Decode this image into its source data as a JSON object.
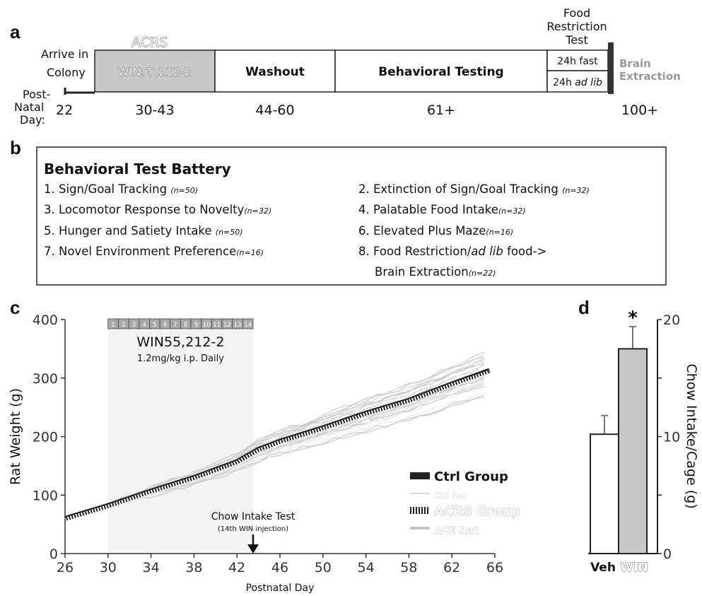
{
  "panels": {
    "a": "a",
    "b": "b",
    "c": "c",
    "d": "d"
  },
  "timeline": {
    "arrive_line1": "Arrive in",
    "arrive_line2": "Colony",
    "acrs_label": "ACRS",
    "win_label": "WIN55,212-2",
    "washout": "Washout",
    "behavioral": "Behavioral Testing",
    "food_test_line1": "Food",
    "food_test_line2": "Restriction",
    "food_test_line3": "Test",
    "fast": "24h fast",
    "adlib_prefix": "24h ",
    "adlib_italic": "ad lib",
    "brain_line1": "Brain",
    "brain_line2": "Extraction",
    "pnd_line1": "Post-",
    "pnd_line2": "Natal",
    "pnd_line3": "Day:",
    "days": [
      "22",
      "30-43",
      "44-60",
      "61+",
      "100+"
    ]
  },
  "battery": {
    "title": "Behavioral Test Battery",
    "items": [
      {
        "text": "1. Sign/Goal Tracking ",
        "n": "(n=50)"
      },
      {
        "text": "2. Extinction of Sign/Goal Tracking ",
        "n": "(n=32)"
      },
      {
        "text": "3. Locomotor Response to Novelty",
        "n": "(n=32)"
      },
      {
        "text": "4. Palatable Food Intake",
        "n": "(n=32)"
      },
      {
        "text": "5. Hunger and Satiety Intake ",
        "n": "(n=50)"
      },
      {
        "text": "6. Elevated Plus Maze",
        "n": "(n=16)"
      },
      {
        "text": "7. Novel Environment Preference",
        "n": "(n=16)"
      },
      {
        "text_pre": "8. Food Restriction/",
        "text_italic": "ad lib",
        "text_post": " food->",
        "line2": "Brain Extraction",
        "n": "(n=22)"
      }
    ]
  },
  "chart_data": [
    {
      "type": "line",
      "xlabel": "Postnatal Day",
      "ylabel": "Rat Weight (g)",
      "xlim": [
        26,
        66
      ],
      "ylim": [
        0,
        400
      ],
      "xticks": [
        26,
        30,
        34,
        38,
        42,
        46,
        50,
        54,
        58,
        62,
        66
      ],
      "yticks": [
        0,
        100,
        200,
        300,
        400
      ],
      "shaded_region": [
        30,
        43.5
      ],
      "injection_days": [
        "1",
        "2",
        "3",
        "4",
        "5",
        "6",
        "7",
        "8",
        "9",
        "10",
        "11",
        "12",
        "13",
        "14"
      ],
      "annotation_title": "WIN55,212-2",
      "annotation_sub": "1.2mg/kg i.p. Daily",
      "arrow_label": "Chow Intake Test",
      "arrow_sublabel": "(14th WIN injection)",
      "arrow_x": 43.5,
      "legend": [
        "Ctrl Group",
        "Ctrl Rat",
        "ACRS Group",
        "ACE Rat"
      ],
      "legend_placement": "bottom-right",
      "series": [
        {
          "name": "Ctrl Group",
          "x": [
            26,
            30,
            34,
            38,
            42,
            44,
            46,
            50,
            54,
            58,
            62,
            65.5
          ],
          "y": [
            60,
            82,
            107,
            130,
            157,
            178,
            192,
            215,
            240,
            262,
            290,
            313
          ]
        },
        {
          "name": "ACRS Group",
          "x": [
            26,
            30,
            34,
            38,
            42,
            44,
            46,
            50,
            54,
            58,
            62,
            65.5
          ],
          "y": [
            58,
            80,
            105,
            128,
            155,
            176,
            190,
            213,
            238,
            260,
            288,
            310
          ]
        }
      ],
      "colors": {
        "ctrl_group": "#222222",
        "ctrl_rat": "#e8e8e8",
        "acrs_group": "#222222",
        "ace_rat": "#c4c4c4",
        "shade": "#f3f3f3"
      }
    },
    {
      "type": "bar",
      "categories": [
        "Veh",
        "WIN"
      ],
      "values": [
        10.2,
        17.5
      ],
      "errors": [
        1.6,
        1.9
      ],
      "ylabel": "Chow Intake/Cage (g)",
      "ylim": [
        0,
        20
      ],
      "yticks": [
        0,
        10,
        20
      ],
      "significance": "*",
      "colors": {
        "Veh": "#ffffff",
        "WIN": "#c8c8c8"
      }
    }
  ]
}
